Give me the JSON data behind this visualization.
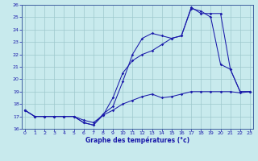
{
  "xlabel": "Graphe des températures (°c)",
  "bg_color": "#c8eaed",
  "grid_color": "#9dc8cc",
  "line_color": "#1a1aaa",
  "xlim": [
    -0.3,
    23.3
  ],
  "ylim": [
    16,
    26
  ],
  "xticks": [
    0,
    1,
    2,
    3,
    4,
    5,
    6,
    7,
    8,
    9,
    10,
    11,
    12,
    13,
    14,
    15,
    16,
    17,
    18,
    19,
    20,
    21,
    22,
    23
  ],
  "yticks": [
    16,
    17,
    18,
    19,
    20,
    21,
    22,
    23,
    24,
    25,
    26
  ],
  "s1_x": [
    0,
    1,
    2,
    3,
    4,
    5,
    6,
    7,
    8,
    9,
    10,
    11,
    12,
    13,
    14,
    15,
    16,
    17,
    18,
    19,
    20,
    21,
    22,
    23
  ],
  "s1_y": [
    17.5,
    17.0,
    17.0,
    17.0,
    17.0,
    17.0,
    16.7,
    16.5,
    17.1,
    17.5,
    18.0,
    18.3,
    18.6,
    18.8,
    18.5,
    18.6,
    18.8,
    19.0,
    19.0,
    19.0,
    19.0,
    19.0,
    18.9,
    19.0
  ],
  "s2_x": [
    0,
    1,
    2,
    3,
    4,
    5,
    6,
    7,
    8,
    9,
    10,
    11,
    12,
    13,
    14,
    15,
    16,
    17,
    18,
    19,
    20,
    21,
    22,
    23
  ],
  "s2_y": [
    17.5,
    17.0,
    17.0,
    17.0,
    17.0,
    17.0,
    16.5,
    16.3,
    17.1,
    18.5,
    20.5,
    21.5,
    22.0,
    22.3,
    22.8,
    23.3,
    23.5,
    25.7,
    25.5,
    25.0,
    21.2,
    20.8,
    19.0,
    19.0
  ],
  "s3_x": [
    0,
    1,
    2,
    3,
    4,
    5,
    6,
    7,
    8,
    9,
    10,
    11,
    12,
    13,
    14,
    15,
    16,
    17,
    18,
    19,
    20,
    21,
    22,
    23
  ],
  "s3_y": [
    17.5,
    17.0,
    17.0,
    17.0,
    17.0,
    17.0,
    16.5,
    16.3,
    17.2,
    17.8,
    19.8,
    22.0,
    23.3,
    23.7,
    23.5,
    23.3,
    23.5,
    25.8,
    25.3,
    25.3,
    25.3,
    20.8,
    19.0,
    19.0
  ],
  "tick_fontsize": 4.5,
  "xlabel_fontsize": 5.5
}
